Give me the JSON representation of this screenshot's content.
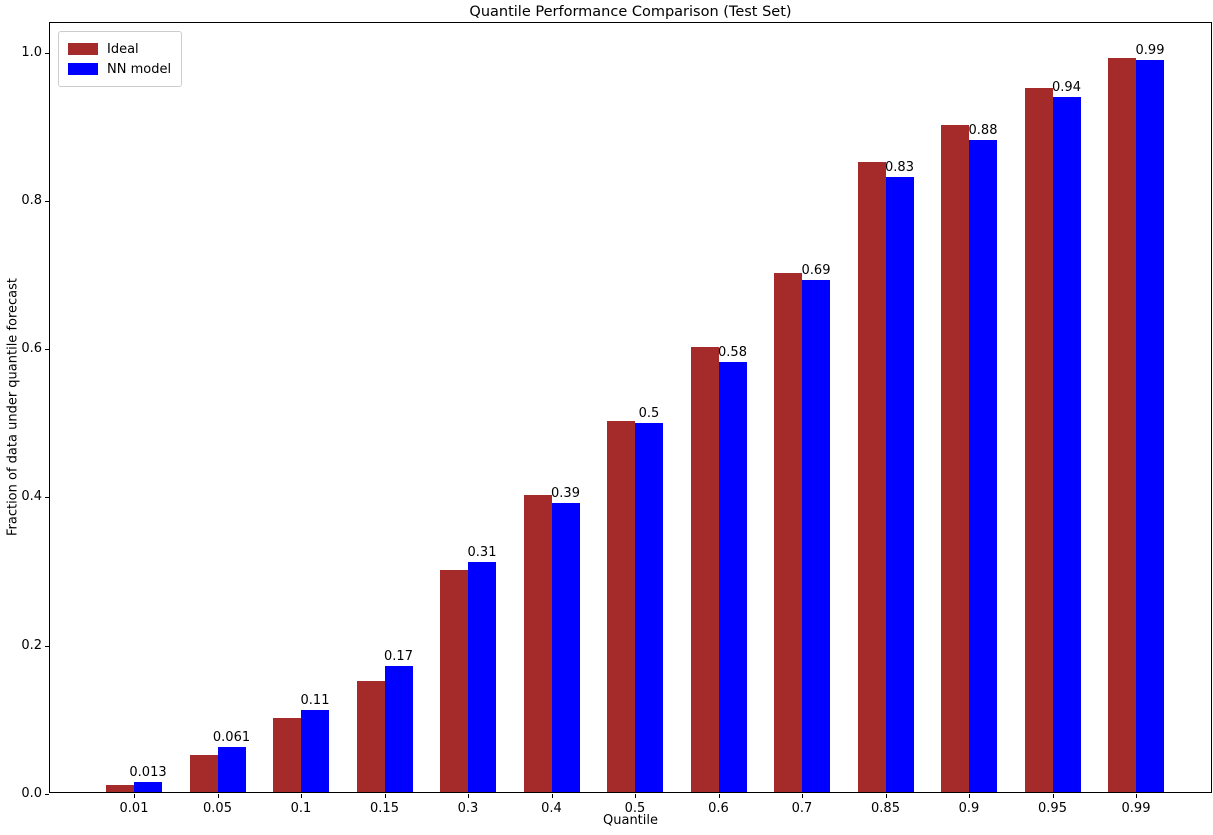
{
  "chart_data": {
    "type": "bar",
    "title": "Quantile Performance Comparison (Test Set)",
    "xlabel": "Quantile",
    "ylabel": "Fraction of data under quantile forecast",
    "categories": [
      "0.01",
      "0.05",
      "0.1",
      "0.15",
      "0.3",
      "0.4",
      "0.5",
      "0.6",
      "0.7",
      "0.85",
      "0.9",
      "0.95",
      "0.99"
    ],
    "series": [
      {
        "name": "Ideal",
        "color": "#A52A2A",
        "values": [
          0.01,
          0.05,
          0.1,
          0.15,
          0.3,
          0.4,
          0.5,
          0.6,
          0.7,
          0.85,
          0.9,
          0.95,
          0.99
        ]
      },
      {
        "name": "NN model",
        "color": "#0000FF",
        "values": [
          0.013,
          0.061,
          0.11,
          0.17,
          0.31,
          0.39,
          0.498,
          0.58,
          0.69,
          0.83,
          0.88,
          0.937,
          0.987
        ],
        "bar_labels": [
          "0.013",
          "0.061",
          "0.11",
          "0.17",
          "0.31",
          "0.39",
          "0.5",
          "0.58",
          "0.69",
          "0.83",
          "0.88",
          "0.94",
          "0.99"
        ]
      }
    ],
    "yticks": [
      "0.0",
      "0.2",
      "0.4",
      "0.6",
      "0.8",
      "1.0"
    ],
    "ylim": [
      0,
      1.04
    ],
    "grid": false,
    "legend_position": "upper left",
    "legend": {
      "items": [
        {
          "label": "Ideal"
        },
        {
          "label": "NN model"
        }
      ]
    }
  }
}
